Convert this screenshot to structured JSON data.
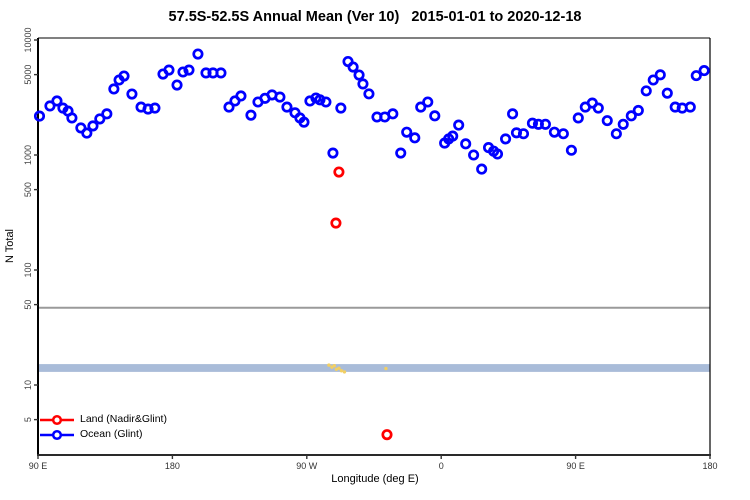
{
  "chart_data": {
    "type": "scatter",
    "title": "57.5S-52.5S Annual Mean (Ver 10)   2015-01-01 to 2020-12-18",
    "xlabel": "Longitude (deg E)",
    "ylabel": "N Total",
    "x_axis": {
      "description": "position = degrees eastward from 90E; axis wraps 90E -> 180 -> 90W -> 0 -> 90E -> 180",
      "range": [
        0,
        450
      ],
      "ticks": [
        {
          "pos": 0,
          "label": "90 E"
        },
        {
          "pos": 90,
          "label": "180"
        },
        {
          "pos": 180,
          "label": "90 W"
        },
        {
          "pos": 270,
          "label": "0"
        },
        {
          "pos": 360,
          "label": "90 E"
        },
        {
          "pos": 450,
          "label": "180"
        }
      ]
    },
    "y_axis": {
      "scale": "log10",
      "range": [
        2.5,
        10500
      ],
      "ticks": [
        5,
        10,
        50,
        100,
        500,
        1000,
        5000,
        10000
      ]
    },
    "series": [
      {
        "name": "Land (Nadir&Glint)",
        "color": "#ff0000",
        "marker": "open-circle",
        "points": [
          [
            201.5,
            711
          ],
          [
            199.5,
            256
          ],
          [
            233.7,
            3.7
          ]
        ]
      },
      {
        "name": "Ocean (Glint)",
        "color": "#0000ff",
        "marker": "open-circle",
        "points": [
          [
            1,
            2180
          ],
          [
            8,
            2670
          ],
          [
            12.7,
            2950
          ],
          [
            16.7,
            2560
          ],
          [
            20.1,
            2410
          ],
          [
            22.7,
            2100
          ],
          [
            28.7,
            1720
          ],
          [
            32.7,
            1550
          ],
          [
            36.8,
            1790
          ],
          [
            41.4,
            2060
          ],
          [
            46.1,
            2280
          ],
          [
            50.8,
            3750
          ],
          [
            54.3,
            4490
          ],
          [
            57.6,
            4860
          ],
          [
            62.9,
            3390
          ],
          [
            69.0,
            2610
          ],
          [
            73.7,
            2510
          ],
          [
            78.3,
            2560
          ],
          [
            83.7,
            5060
          ],
          [
            87.7,
            5480
          ],
          [
            93.1,
            4060
          ],
          [
            97.1,
            5270
          ],
          [
            101.1,
            5480
          ],
          [
            107.1,
            7550
          ],
          [
            112.5,
            5170
          ],
          [
            117.2,
            5170
          ],
          [
            122.5,
            5170
          ],
          [
            127.9,
            2610
          ],
          [
            131.9,
            2950
          ],
          [
            135.9,
            3260
          ],
          [
            142.6,
            2220
          ],
          [
            147.3,
            2890
          ],
          [
            152.0,
            3110
          ],
          [
            156.7,
            3330
          ],
          [
            162.0,
            3190
          ],
          [
            166.7,
            2610
          ],
          [
            172.1,
            2330
          ],
          [
            175.4,
            2100
          ],
          [
            178.1,
            1930
          ],
          [
            182.1,
            2950
          ],
          [
            186.1,
            3130
          ],
          [
            188.8,
            3020
          ],
          [
            192.8,
            2890
          ],
          [
            197.5,
            1040
          ],
          [
            202.8,
            2560
          ],
          [
            207.6,
            6500
          ],
          [
            211.0,
            5820
          ],
          [
            215.0,
            4960
          ],
          [
            217.6,
            4150
          ],
          [
            221.6,
            3400
          ],
          [
            227.0,
            2140
          ],
          [
            232.2,
            2140
          ],
          [
            237.6,
            2280
          ],
          [
            242.9,
            1040
          ],
          [
            246.9,
            1580
          ],
          [
            252.3,
            1410
          ],
          [
            256.3,
            2610
          ],
          [
            261.0,
            2890
          ],
          [
            265.7,
            2190
          ],
          [
            272.3,
            1270
          ],
          [
            275.0,
            1380
          ],
          [
            277.7,
            1460
          ],
          [
            281.7,
            1820
          ],
          [
            286.4,
            1250
          ],
          [
            291.7,
            1000
          ],
          [
            297.1,
            754
          ],
          [
            301.7,
            1160
          ],
          [
            305.1,
            1080
          ],
          [
            307.7,
            1020
          ],
          [
            313.1,
            1380
          ],
          [
            317.8,
            2280
          ],
          [
            320.4,
            1560
          ],
          [
            325.1,
            1530
          ],
          [
            331.1,
            1890
          ],
          [
            335.1,
            1850
          ],
          [
            339.8,
            1850
          ],
          [
            345.8,
            1580
          ],
          [
            351.8,
            1530
          ],
          [
            357.2,
            1100
          ],
          [
            361.8,
            2100
          ],
          [
            366.5,
            2610
          ],
          [
            371.2,
            2830
          ],
          [
            375.2,
            2560
          ],
          [
            381.2,
            1990
          ],
          [
            387.3,
            1530
          ],
          [
            391.9,
            1850
          ],
          [
            397.3,
            2190
          ],
          [
            402.0,
            2440
          ],
          [
            407.3,
            3610
          ],
          [
            412.0,
            4490
          ],
          [
            416.7,
            4980
          ],
          [
            421.4,
            3450
          ],
          [
            426.7,
            2610
          ],
          [
            431.4,
            2560
          ],
          [
            436.8,
            2610
          ],
          [
            440.8,
            4900
          ],
          [
            446.1,
            5420
          ]
        ]
      }
    ],
    "band": {
      "color": "#a9bcd9",
      "value_range": [
        13,
        15.2
      ]
    },
    "threshold_line": {
      "value": 47,
      "color": "#9a9a9a"
    },
    "land_fraction_marks": {
      "color": "#f2cf63",
      "points": [
        [
          194.8,
          14.9
        ],
        [
          196.8,
          14.3
        ],
        [
          198.4,
          14.7
        ],
        [
          199.8,
          13.7
        ],
        [
          201.5,
          14.0
        ],
        [
          203.2,
          13.3
        ],
        [
          205.2,
          13.0
        ],
        [
          233.0,
          13.9
        ]
      ]
    },
    "legend_position": "bottom-left",
    "grid": false
  }
}
